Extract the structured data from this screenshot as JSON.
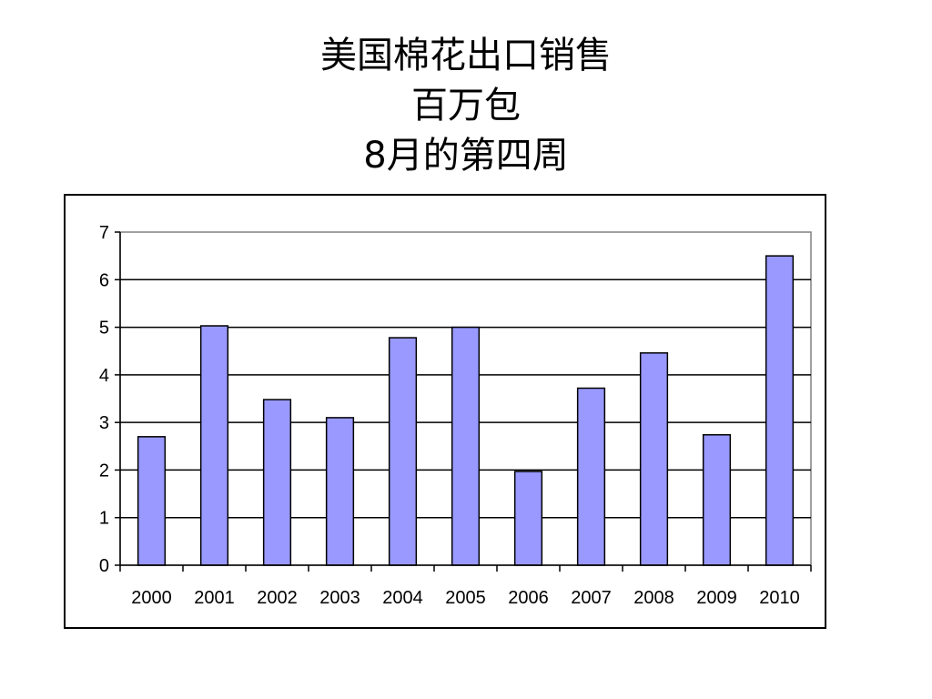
{
  "title": {
    "line1": "美国棉花出口销售",
    "line2": "百万包",
    "line3": "8月的第四周"
  },
  "colors": {
    "bar_fill": "#9999ff",
    "bar_stroke": "#000000",
    "grid": "#000000",
    "plot_border": "#808080"
  },
  "chart_data": {
    "type": "bar",
    "title": "美国棉花出口销售 百万包 8月的第四周",
    "categories": [
      "2000",
      "2001",
      "2002",
      "2003",
      "2004",
      "2005",
      "2006",
      "2007",
      "2008",
      "2009",
      "2010"
    ],
    "values": [
      2.7,
      5.03,
      3.48,
      3.1,
      4.78,
      5.0,
      1.97,
      3.72,
      4.46,
      2.74,
      6.5
    ],
    "xlabel": "",
    "ylabel": "",
    "ylim": [
      0,
      7
    ],
    "yticks": [
      "0",
      "1",
      "2",
      "3",
      "4",
      "5",
      "6",
      "7"
    ],
    "grid": true,
    "legend": "none"
  }
}
